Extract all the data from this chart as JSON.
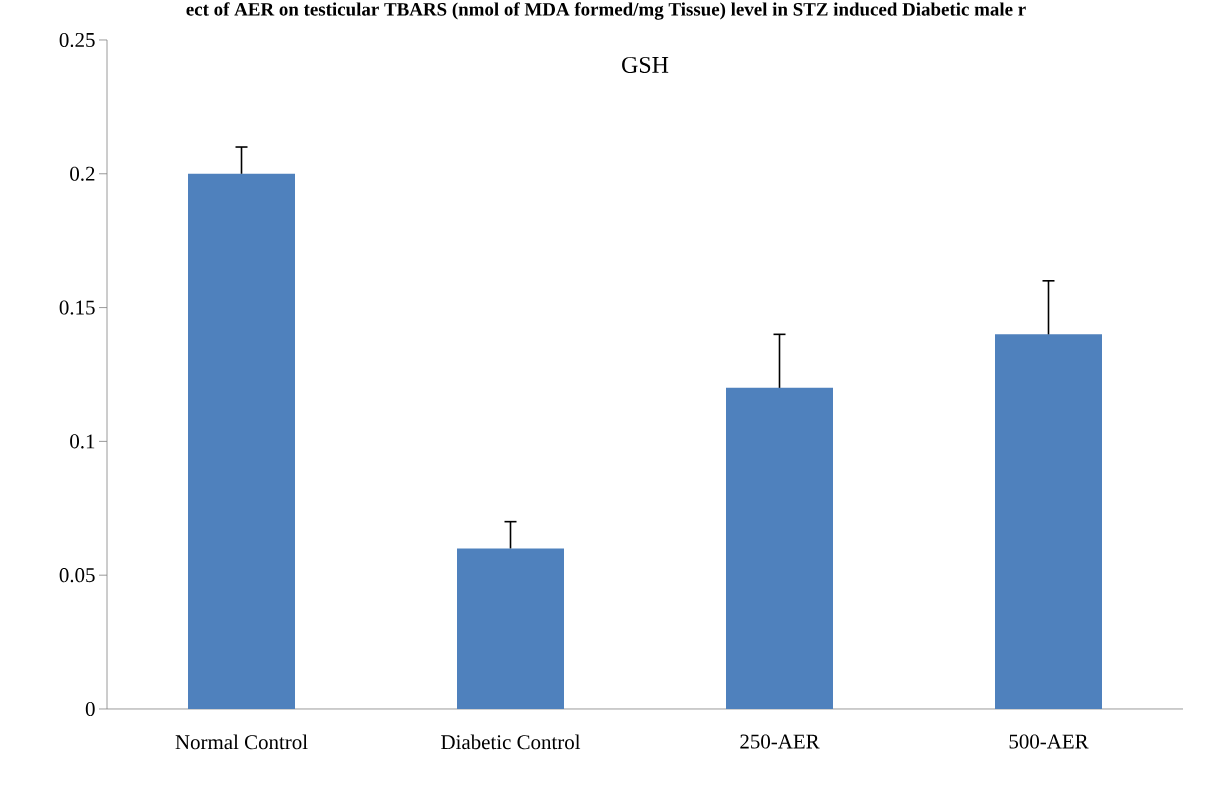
{
  "chart_data": {
    "type": "bar",
    "title": "ect of AER on testicular TBARS (nmol of MDA formed/mg Tissue) level in STZ induced Diabetic male r",
    "annotations": [
      "GSH"
    ],
    "categories": [
      "Normal Control",
      "Diabetic Control",
      "250-AER",
      "500-AER"
    ],
    "values": [
      0.2,
      0.06,
      0.12,
      0.14
    ],
    "errors": [
      [
        0.2,
        0.21
      ],
      [
        0.06,
        0.07
      ],
      [
        0.12,
        0.14
      ],
      [
        0.14,
        0.16
      ]
    ],
    "color": "#4f81bd",
    "ylim": [
      0,
      0.25
    ],
    "yticks": [
      0,
      0.05,
      0.1,
      0.15,
      0.2,
      0.25
    ],
    "grid": false
  }
}
